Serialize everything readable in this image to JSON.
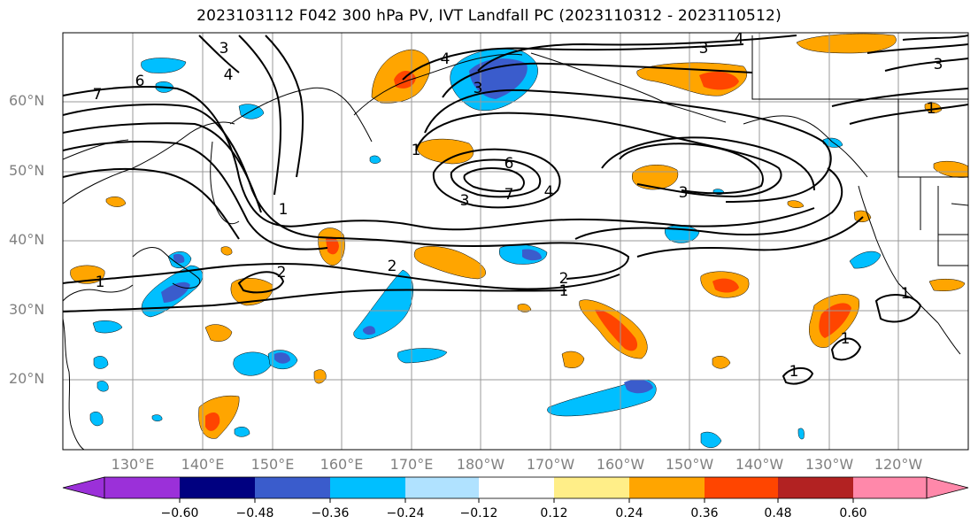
{
  "title": "2023103112 F042 300 hPa PV, IVT Landfall PC (2023110312 - 2023110512)",
  "lat_labels": [
    "60°N",
    "50°N",
    "40°N",
    "30°N",
    "20°N"
  ],
  "lon_labels": [
    "130°E",
    "140°E",
    "150°E",
    "160°E",
    "170°E",
    "180°W",
    "170°W",
    "160°W",
    "150°W",
    "140°W",
    "130°W",
    "120°W"
  ],
  "colorbar": {
    "colors": [
      "#9b30d9",
      "#000080",
      "#3a5ccc",
      "#00bfff",
      "#b0e2ff",
      "#ffffff",
      "#ffee88",
      "#ffa500",
      "#ff4500",
      "#b22222",
      "#ff88aa"
    ],
    "tick_labels": [
      "−0.60",
      "−0.48",
      "−0.36",
      "−0.24",
      "−0.12",
      "0.12",
      "0.24",
      "0.36",
      "0.48",
      "0.60"
    ]
  },
  "contour_labels": [
    "3",
    "4",
    "6",
    "7",
    "4",
    "3",
    "3",
    "4",
    "1",
    "6",
    "7",
    "4",
    "3",
    "3",
    "3",
    "2",
    "2",
    "1",
    "2",
    "1",
    "1",
    "1",
    "1",
    "1",
    "1"
  ],
  "colors": {
    "positive": "#ffa500",
    "strong_positive": "#ff4500",
    "negative": "#00bfff",
    "strong_negative": "#3a5ccc",
    "weak_positive": "#ffee88",
    "weak_negative": "#b0e2ff"
  }
}
